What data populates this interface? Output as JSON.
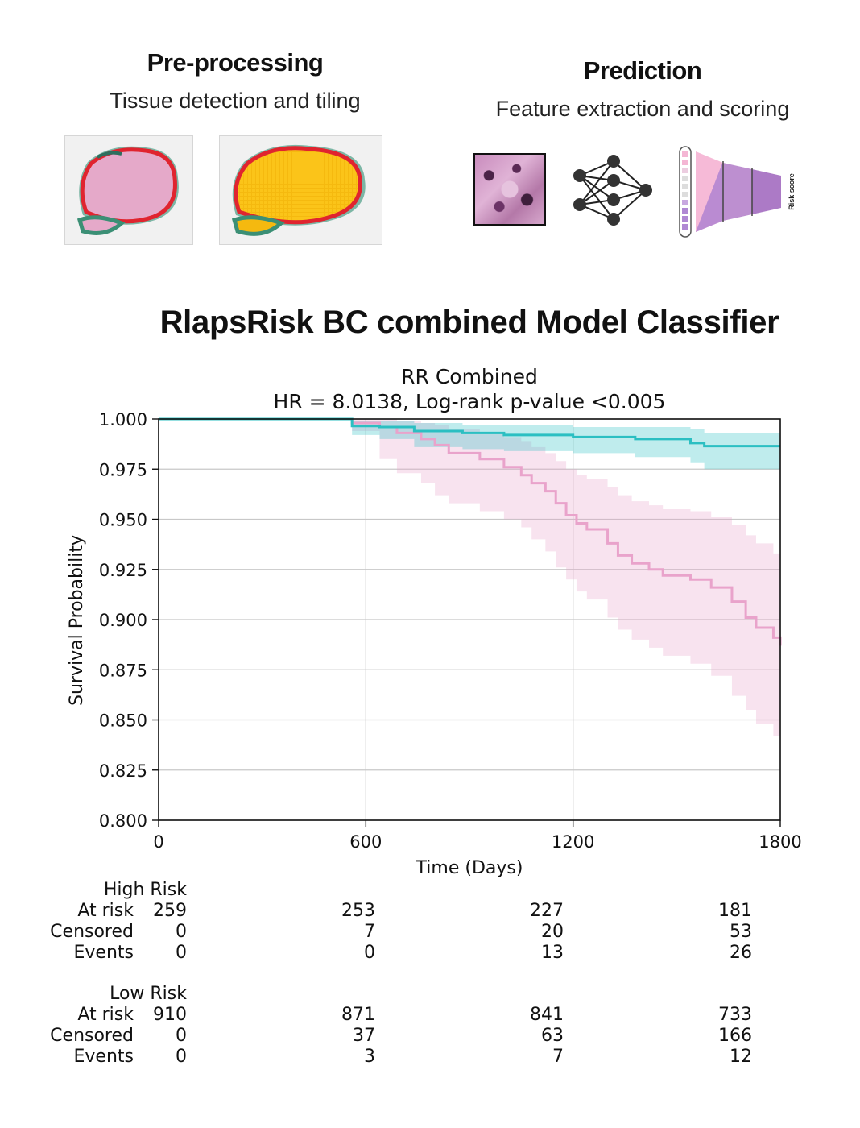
{
  "pipeline": {
    "preprocessing": {
      "title": "Pre-processing",
      "subtitle": "Tissue detection and tiling"
    },
    "prediction": {
      "title": "Prediction",
      "subtitle": "Feature extraction and scoring",
      "risk_score_label": "Risk score"
    }
  },
  "main_title": "RlapsRisk BC combined Model Classifier",
  "chart_data": {
    "type": "line",
    "title": "RR Combined",
    "subtitle": "HR = 8.0138, Log-rank p-value <0.005",
    "xlabel": "Time (Days)",
    "ylabel": "Survival Probability",
    "xlim": [
      0,
      1800
    ],
    "ylim": [
      0.8,
      1.0
    ],
    "xticks": [
      0,
      600,
      1200,
      1800
    ],
    "yticks": [
      0.8,
      0.825,
      0.85,
      0.875,
      0.9,
      0.925,
      0.95,
      0.975,
      1.0
    ],
    "ytick_labels": [
      "0.800",
      "0.825",
      "0.850",
      "0.875",
      "0.900",
      "0.925",
      "0.950",
      "0.975",
      "1.000"
    ],
    "grid": true,
    "colors": {
      "high_risk": "#e9a3cb",
      "low_risk": "#2bbfc2"
    },
    "series": [
      {
        "name": "High Risk",
        "step_x": [
          0,
          560,
          640,
          690,
          760,
          800,
          840,
          930,
          1000,
          1050,
          1080,
          1120,
          1150,
          1180,
          1210,
          1240,
          1300,
          1330,
          1370,
          1420,
          1460,
          1540,
          1600,
          1660,
          1700,
          1730,
          1780,
          1800
        ],
        "survival": [
          1.0,
          0.998,
          0.996,
          0.993,
          0.99,
          0.987,
          0.983,
          0.98,
          0.976,
          0.972,
          0.968,
          0.964,
          0.958,
          0.952,
          0.948,
          0.945,
          0.938,
          0.932,
          0.928,
          0.925,
          0.922,
          0.92,
          0.916,
          0.909,
          0.901,
          0.896,
          0.891,
          0.887
        ],
        "ci_lower": [
          1.0,
          0.994,
          0.98,
          0.973,
          0.968,
          0.962,
          0.958,
          0.954,
          0.95,
          0.946,
          0.94,
          0.934,
          0.926,
          0.92,
          0.914,
          0.91,
          0.901,
          0.895,
          0.89,
          0.886,
          0.882,
          0.878,
          0.872,
          0.862,
          0.855,
          0.848,
          0.842,
          0.838
        ],
        "ci_upper": [
          1.0,
          1.0,
          1.0,
          0.999,
          0.998,
          0.997,
          0.995,
          0.993,
          0.991,
          0.989,
          0.986,
          0.983,
          0.979,
          0.975,
          0.972,
          0.97,
          0.966,
          0.962,
          0.959,
          0.957,
          0.955,
          0.954,
          0.951,
          0.947,
          0.942,
          0.938,
          0.933,
          0.93
        ]
      },
      {
        "name": "Low Risk",
        "step_x": [
          0,
          560,
          640,
          740,
          880,
          1000,
          1200,
          1380,
          1540,
          1580,
          1800
        ],
        "survival": [
          1.0,
          0.9965,
          0.996,
          0.994,
          0.993,
          0.992,
          0.991,
          0.99,
          0.988,
          0.9865,
          0.9865
        ],
        "ci_lower": [
          1.0,
          0.992,
          0.99,
          0.986,
          0.985,
          0.984,
          0.983,
          0.981,
          0.978,
          0.975,
          0.975
        ],
        "ci_upper": [
          1.0,
          0.999,
          0.999,
          0.998,
          0.997,
          0.997,
          0.996,
          0.996,
          0.995,
          0.993,
          0.993
        ]
      }
    ]
  },
  "risk_table": {
    "groups": [
      {
        "name": "High Risk",
        "rows": [
          {
            "label": "At risk",
            "values": [
              "259",
              "253",
              "227",
              "181"
            ]
          },
          {
            "label": "Censored",
            "values": [
              "0",
              "7",
              "20",
              "53"
            ]
          },
          {
            "label": "Events",
            "values": [
              "0",
              "0",
              "13",
              "26"
            ]
          }
        ]
      },
      {
        "name": "Low Risk",
        "rows": [
          {
            "label": "At risk",
            "values": [
              "910",
              "871",
              "841",
              "733"
            ]
          },
          {
            "label": "Censored",
            "values": [
              "0",
              "37",
              "63",
              "166"
            ]
          },
          {
            "label": "Events",
            "values": [
              "0",
              "3",
              "7",
              "12"
            ]
          }
        ]
      }
    ]
  }
}
